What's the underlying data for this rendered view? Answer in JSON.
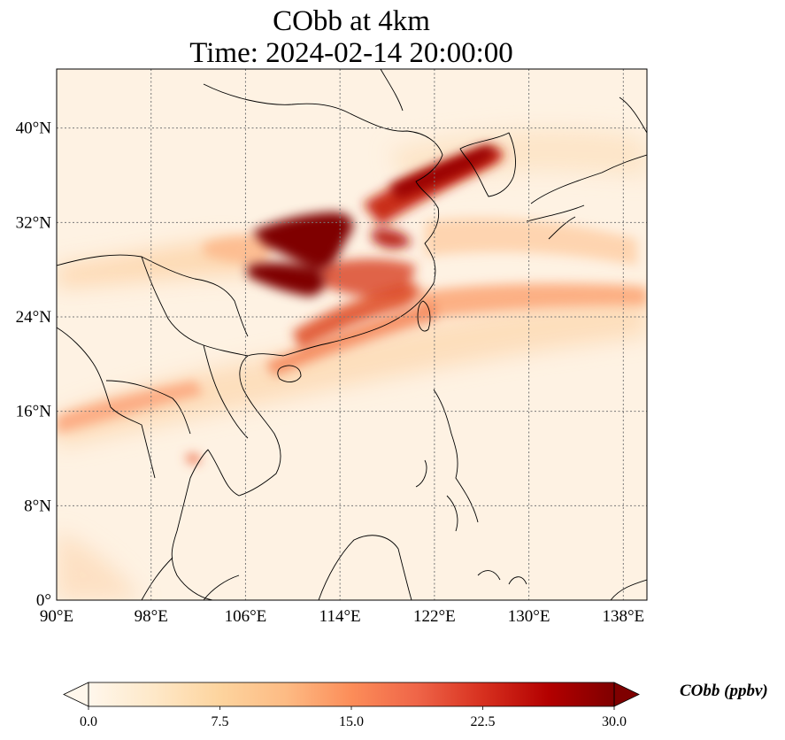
{
  "title_line1": "CObb at 4km",
  "title_line2": "Time: 2024-02-14 20:00:00",
  "map": {
    "extent": {
      "lon_min": 90,
      "lon_max": 140,
      "lat_min": 0,
      "lat_max": 45
    },
    "lon_ticks": [
      90,
      98,
      106,
      114,
      122,
      130,
      138
    ],
    "lon_tick_labels": [
      "90°E",
      "98°E",
      "106°E",
      "114°E",
      "122°E",
      "130°E",
      "138°E"
    ],
    "lat_ticks": [
      0,
      8,
      16,
      24,
      32,
      40
    ],
    "lat_tick_labels": [
      "0°",
      "8°N",
      "16°N",
      "24°N",
      "32°N",
      "40°N"
    ],
    "gridlines": true,
    "gridline_style": "dotted",
    "colormap": "OrRd",
    "plumes": [
      {
        "region": "central-east China",
        "lon": 111.0,
        "lat": 31.5,
        "value": 30
      },
      {
        "region": "Sichuan basin",
        "lon": 109.0,
        "lat": 28.0,
        "value": 30
      },
      {
        "region": "east China coast to Korea",
        "lon": 119.0,
        "lat": 35.0,
        "value": 27
      },
      {
        "region": "southeast China coast",
        "lon": 117.0,
        "lat": 24.5,
        "value": 22
      },
      {
        "region": "western Pacific outflow",
        "lon": 134.0,
        "lat": 27.0,
        "value": 12
      }
    ]
  },
  "colorbar": {
    "label": "CObb (ppbv)",
    "min": 0.0,
    "max": 30.0,
    "ticks": [
      0.0,
      7.5,
      15.0,
      22.5,
      30.0
    ],
    "tick_labels": [
      "0.0",
      "7.5",
      "15.0",
      "22.5",
      "30.0"
    ],
    "extend": "both",
    "colors": [
      "#fff7ec",
      "#fee8c8",
      "#fdd49e",
      "#fdbb84",
      "#fc8d59",
      "#ef6548",
      "#d7301f",
      "#b30000",
      "#7f0000"
    ]
  }
}
